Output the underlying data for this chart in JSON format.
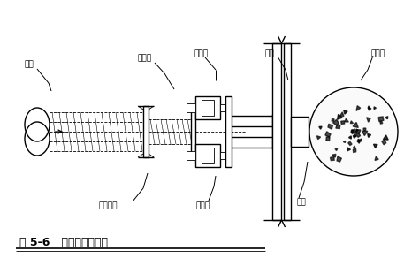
{
  "title": "图 5-6   钢管横撑安装图",
  "bg_color": "#ffffff",
  "line_color": "#000000",
  "labels": {
    "steel_pipe": "钢管",
    "connector_head": "活络头",
    "connector_tail": "活络稍头",
    "jack_top": "千斤顶",
    "jack_bottom": "千斤顶",
    "steel_beam": "钢梭",
    "cast_pile": "椎注桩",
    "enclosure": "围檩"
  },
  "figsize": [
    4.57,
    3.01
  ],
  "dpi": 100
}
